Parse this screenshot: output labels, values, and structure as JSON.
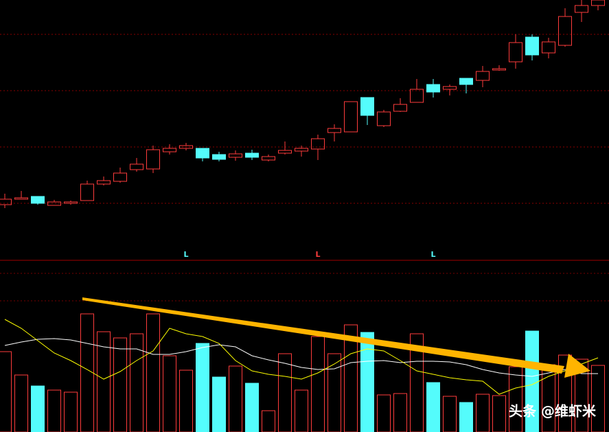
{
  "chart_data": {
    "type": "candlestick",
    "up_color": "#ff3c3c",
    "down_color": "#54fcfc",
    "ylim": [
      0,
      380
    ],
    "ygrid": [
      84,
      166,
      248,
      330
    ],
    "open": [
      82,
      90,
      94,
      81,
      84,
      88,
      112,
      116,
      133,
      134,
      159,
      164,
      164,
      155,
      151,
      157,
      147,
      157,
      160,
      163,
      187,
      188,
      238,
      197,
      218,
      231,
      257,
      250,
      266,
      263,
      278,
      290,
      326,
      303,
      314,
      362,
      372
    ],
    "high": [
      98,
      102,
      94,
      89,
      88,
      117,
      123,
      136,
      150,
      168,
      170,
      172,
      164,
      159,
      161,
      162,
      155,
      174,
      168,
      184,
      199,
      232,
      238,
      220,
      237,
      265,
      265,
      257,
      266,
      284,
      285,
      330,
      330,
      325,
      368,
      380,
      380
    ],
    "low": [
      77,
      90,
      82,
      81,
      82,
      88,
      110,
      114,
      130,
      128,
      155,
      161,
      145,
      145,
      146,
      147,
      145,
      155,
      152,
      147,
      174,
      188,
      198,
      195,
      217,
      231,
      238,
      241,
      244,
      253,
      277,
      280,
      292,
      295,
      312,
      348,
      365
    ],
    "close": [
      90,
      92,
      84,
      86,
      86,
      112,
      117,
      128,
      141,
      162,
      164,
      168,
      150,
      148,
      156,
      151,
      152,
      161,
      164,
      178,
      193,
      232,
      212,
      217,
      228,
      250,
      246,
      254,
      257,
      276,
      280,
      318,
      300,
      319,
      356,
      372,
      380
    ],
    "markers": [
      {
        "index": 11,
        "label": "L",
        "color": "#54fcfc"
      },
      {
        "index": 19,
        "label": "L",
        "color": "#ff3c3c"
      },
      {
        "index": 26,
        "label": "L",
        "color": "#54fcfc"
      }
    ],
    "volume": {
      "ylim": [
        0,
        249
      ],
      "values": [
        117,
        83,
        67,
        61,
        58,
        172,
        146,
        137,
        143,
        172,
        111,
        90,
        129,
        80,
        96,
        71,
        31,
        114,
        61,
        139,
        114,
        156,
        145,
        54,
        56,
        143,
        72,
        52,
        43,
        55,
        53,
        95,
        147,
        98,
        112,
        106,
        97
      ],
      "lines": [
        {
          "color": "#ffffff",
          "values": [
            126,
            131,
            135,
            136,
            134,
            129,
            124,
            121,
            121,
            113,
            113,
            117,
            123,
            127,
            124,
            111,
            105,
            100,
            94,
            91,
            92,
            101,
            103,
            104,
            101,
            103,
            103,
            102,
            98,
            91,
            86,
            83,
            81,
            86,
            91,
            85,
            85
          ]
        },
        {
          "color": "#ffff00",
          "values": [
            164,
            151,
            133,
            115,
            104,
            91,
            77,
            88,
            104,
            118,
            151,
            143,
            139,
            129,
            104,
            89,
            84,
            81,
            77,
            86,
            99,
            114,
            121,
            118,
            104,
            89,
            84,
            79,
            76,
            74,
            55,
            64,
            69,
            81,
            89,
            99,
            108
          ]
        }
      ]
    },
    "watermark": "头条 @维虾米"
  }
}
